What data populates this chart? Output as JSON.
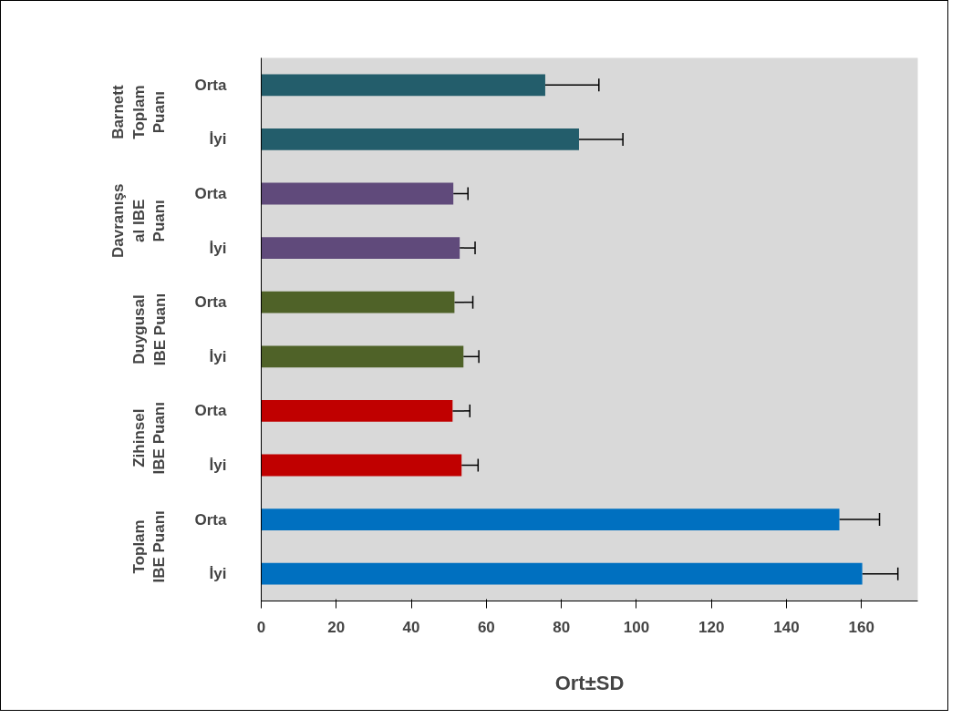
{
  "chart_data": {
    "type": "bar",
    "orientation": "horizontal",
    "xlabel": "Ort±SD",
    "categories": [
      "Orta",
      "İyi",
      "Orta",
      "İyi",
      "Orta",
      "İyi",
      "Orta",
      "İyi",
      "Orta",
      "İyi"
    ],
    "values": [
      75.7,
      84.7,
      51.2,
      52.9,
      51.5,
      53.9,
      51.0,
      53.4,
      154.1,
      160.2
    ],
    "errors": [
      14.3,
      11.7,
      3.9,
      4.1,
      4.9,
      4.1,
      4.6,
      4.4,
      10.7,
      9.5
    ],
    "colors": [
      "#235d6b",
      "#235d6b",
      "#604a7b",
      "#604a7b",
      "#4f6228",
      "#4f6228",
      "#c00000",
      "#c00000",
      "#0070c0",
      "#0070c0"
    ],
    "annotations": [
      "Barnett\nToplam\nPuanı",
      "Davranışs\nal IBE\nPuanı",
      "Duygusal\nIBE Puanı",
      "Zihinsel\nIBE Puanı",
      "Toplam\nIBE Puanı"
    ],
    "xlim": [
      0,
      175
    ],
    "xticks": [
      0,
      20,
      40,
      60,
      80,
      100,
      120,
      140,
      160
    ],
    "grid": false,
    "legend": false
  }
}
